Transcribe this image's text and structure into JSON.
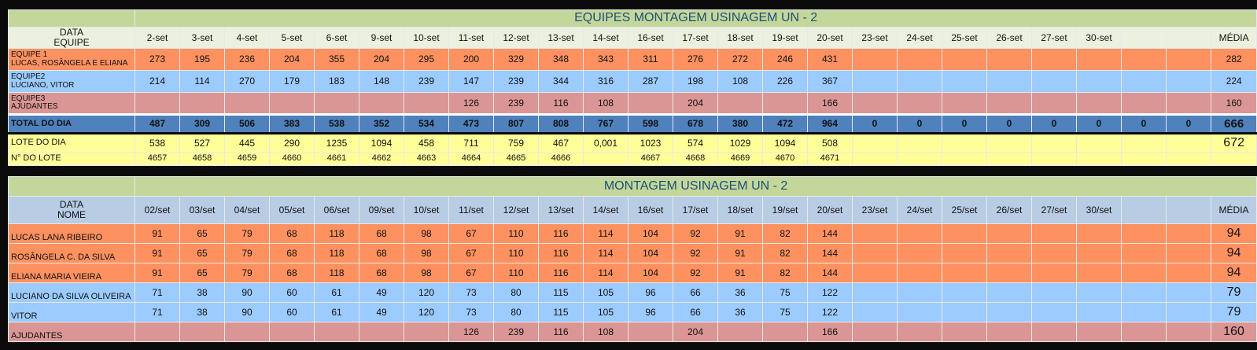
{
  "table1": {
    "title": "EQUIPES MONTAGEM USINAGEM UN - 2",
    "header_top": "DATA",
    "header_bottom": "EQUIPE",
    "dates": [
      "2-set",
      "3-set",
      "4-set",
      "5-set",
      "6-set",
      "9-set",
      "10-set",
      "11-set",
      "12-set",
      "13-set",
      "14-set",
      "16-set",
      "17-set",
      "18-set",
      "19-set",
      "20-set",
      "23-set",
      "24-set",
      "25-set",
      "26-set",
      "27-set",
      "30-set",
      "",
      ""
    ],
    "media_label": "MÉDIA",
    "rows": [
      {
        "label1": "EQUIPE 1",
        "label2": "LUCAS, ROSÂNGELA E ELIANA",
        "style": "orange",
        "values": [
          "273",
          "195",
          "236",
          "204",
          "355",
          "204",
          "295",
          "200",
          "329",
          "348",
          "343",
          "311",
          "276",
          "272",
          "246",
          "431",
          "",
          "",
          "",
          "",
          "",
          "",
          "",
          ""
        ],
        "media": "282"
      },
      {
        "label1": "EQUIPE2",
        "label2": "LUCIANO, VITOR",
        "style": "blue",
        "values": [
          "214",
          "114",
          "270",
          "179",
          "183",
          "148",
          "239",
          "147",
          "239",
          "344",
          "316",
          "287",
          "198",
          "108",
          "226",
          "367",
          "",
          "",
          "",
          "",
          "",
          "",
          "",
          ""
        ],
        "media": "224"
      },
      {
        "label1": "EQUIPE3",
        "label2": "AJUDANTES",
        "style": "pink",
        "values": [
          "",
          "",
          "",
          "",
          "",
          "",
          "",
          "126",
          "239",
          "116",
          "108",
          "",
          "204",
          "",
          "",
          "166",
          "",
          "",
          "",
          "",
          "",
          "",
          "",
          ""
        ],
        "media": "160"
      }
    ],
    "total": {
      "label": "TOTAL DO DIA",
      "values": [
        "487",
        "309",
        "506",
        "383",
        "538",
        "352",
        "534",
        "473",
        "807",
        "808",
        "767",
        "598",
        "678",
        "380",
        "472",
        "964",
        "0",
        "0",
        "0",
        "0",
        "0",
        "0",
        "0",
        "0"
      ],
      "media": "666"
    },
    "lote": {
      "label": "LOTE DO DIA",
      "values": [
        "538",
        "527",
        "445",
        "290",
        "1235",
        "1094",
        "458",
        "711",
        "759",
        "467",
        "0,001",
        "1023",
        "574",
        "1029",
        "1094",
        "508",
        "",
        "",
        "",
        "",
        "",
        "",
        "",
        ""
      ],
      "media": "672"
    },
    "numlote": {
      "label": "N° DO LOTE",
      "values": [
        "4657",
        "4658",
        "4659",
        "4660",
        "4661",
        "4662",
        "4663",
        "4664",
        "4665",
        "4666",
        "",
        "4667",
        "4668",
        "4669",
        "4670",
        "4671",
        "",
        "",
        "",
        "",
        "",
        "",
        "",
        ""
      ],
      "media": ""
    }
  },
  "table2": {
    "title": "MONTAGEM USINAGEM UN - 2",
    "header_top": "DATA",
    "header_bottom": "NOME",
    "dates": [
      "02/set",
      "03/set",
      "04/set",
      "05/set",
      "06/set",
      "09/set",
      "10/set",
      "11/set",
      "12/set",
      "13/set",
      "14/set",
      "16/set",
      "17/set",
      "18/set",
      "19/set",
      "20/set",
      "23/set",
      "24/set",
      "25/set",
      "26/set",
      "27/set",
      "30/set",
      "",
      ""
    ],
    "media_label": "MÉDIA",
    "rows": [
      {
        "name": "LUCAS LANA RIBEIRO",
        "style": "orange",
        "values": [
          "91",
          "65",
          "79",
          "68",
          "118",
          "68",
          "98",
          "67",
          "110",
          "116",
          "114",
          "104",
          "92",
          "91",
          "82",
          "144",
          "",
          "",
          "",
          "",
          "",
          "",
          "",
          ""
        ],
        "media": "94"
      },
      {
        "name": "ROSÂNGELA C. DA SILVA",
        "style": "orange",
        "values": [
          "91",
          "65",
          "79",
          "68",
          "118",
          "68",
          "98",
          "67",
          "110",
          "116",
          "114",
          "104",
          "92",
          "91",
          "82",
          "144",
          "",
          "",
          "",
          "",
          "",
          "",
          "",
          ""
        ],
        "media": "94"
      },
      {
        "name": "ELIANA MARIA VIEIRA",
        "style": "orange",
        "values": [
          "91",
          "65",
          "79",
          "68",
          "118",
          "68",
          "98",
          "67",
          "110",
          "116",
          "114",
          "104",
          "92",
          "91",
          "82",
          "144",
          "",
          "",
          "",
          "",
          "",
          "",
          "",
          ""
        ],
        "media": "94"
      },
      {
        "name": "LUCIANO DA SILVA OLIVEIRA",
        "style": "blue",
        "values": [
          "71",
          "38",
          "90",
          "60",
          "61",
          "49",
          "120",
          "73",
          "80",
          "115",
          "105",
          "96",
          "66",
          "36",
          "75",
          "122",
          "",
          "",
          "",
          "",
          "",
          "",
          "",
          ""
        ],
        "media": "79"
      },
      {
        "name": "VITOR",
        "style": "blue",
        "values": [
          "71",
          "38",
          "90",
          "60",
          "61",
          "49",
          "120",
          "73",
          "80",
          "115",
          "105",
          "96",
          "66",
          "36",
          "75",
          "122",
          "",
          "",
          "",
          "",
          "",
          "",
          "",
          ""
        ],
        "media": "79"
      },
      {
        "name": "AJUDANTES",
        "style": "pink",
        "values": [
          "",
          "",
          "",
          "",
          "",
          "",
          "",
          "126",
          "239",
          "116",
          "108",
          "",
          "204",
          "",
          "",
          "166",
          "",
          "",
          "",
          "",
          "",
          "",
          "",
          ""
        ],
        "media": "160"
      }
    ]
  }
}
